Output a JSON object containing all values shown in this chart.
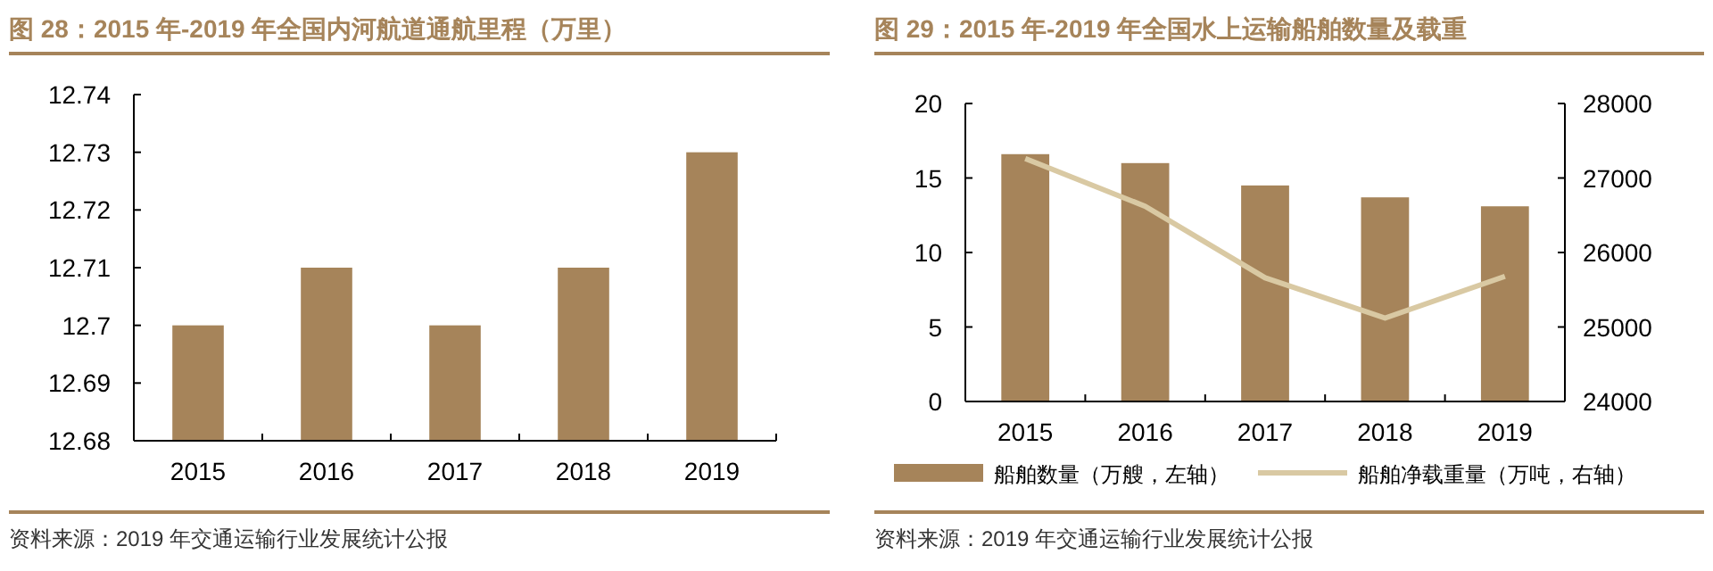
{
  "chart_data": [
    {
      "type": "bar",
      "title": "图 28：2015 年-2019 年全国内河航道通航里程（万里）",
      "annotations": [
        "资料来源：2019 年交通运输行业发展统计公报"
      ],
      "categories": [
        "2015",
        "2016",
        "2017",
        "2018",
        "2019"
      ],
      "values": [
        12.7,
        12.71,
        12.7,
        12.71,
        12.73
      ],
      "color": "#a6845a",
      "ylim": [
        12.68,
        12.74
      ],
      "yticks": [
        12.68,
        12.69,
        12.7,
        12.71,
        12.72,
        12.73,
        12.74
      ]
    },
    {
      "type": "bar",
      "title": "图 29：2015 年-2019 年全国水上运输船舶数量及载重",
      "annotations": [
        "资料来源：2019 年交通运输行业发展统计公报"
      ],
      "categories": [
        "2015",
        "2016",
        "2017",
        "2018",
        "2019"
      ],
      "series": [
        {
          "name": "船舶数量（万艘，左轴）",
          "type": "bar",
          "color": "#a6845a",
          "values": [
            16.6,
            16.0,
            14.5,
            13.7,
            13.1
          ]
        },
        {
          "name": "船舶净载重量（万吨，右轴）",
          "type": "line",
          "axis": "y2",
          "color": "#d9c9a3",
          "values": [
            27260,
            26620,
            25660,
            25120,
            25680
          ]
        }
      ],
      "ylim": [
        0,
        20
      ],
      "yticks": [
        0,
        5,
        10,
        15,
        20
      ],
      "y2lim": [
        24000,
        28000
      ],
      "y2ticks": [
        24000,
        25000,
        26000,
        27000,
        28000
      ],
      "legend": "bottom"
    }
  ]
}
